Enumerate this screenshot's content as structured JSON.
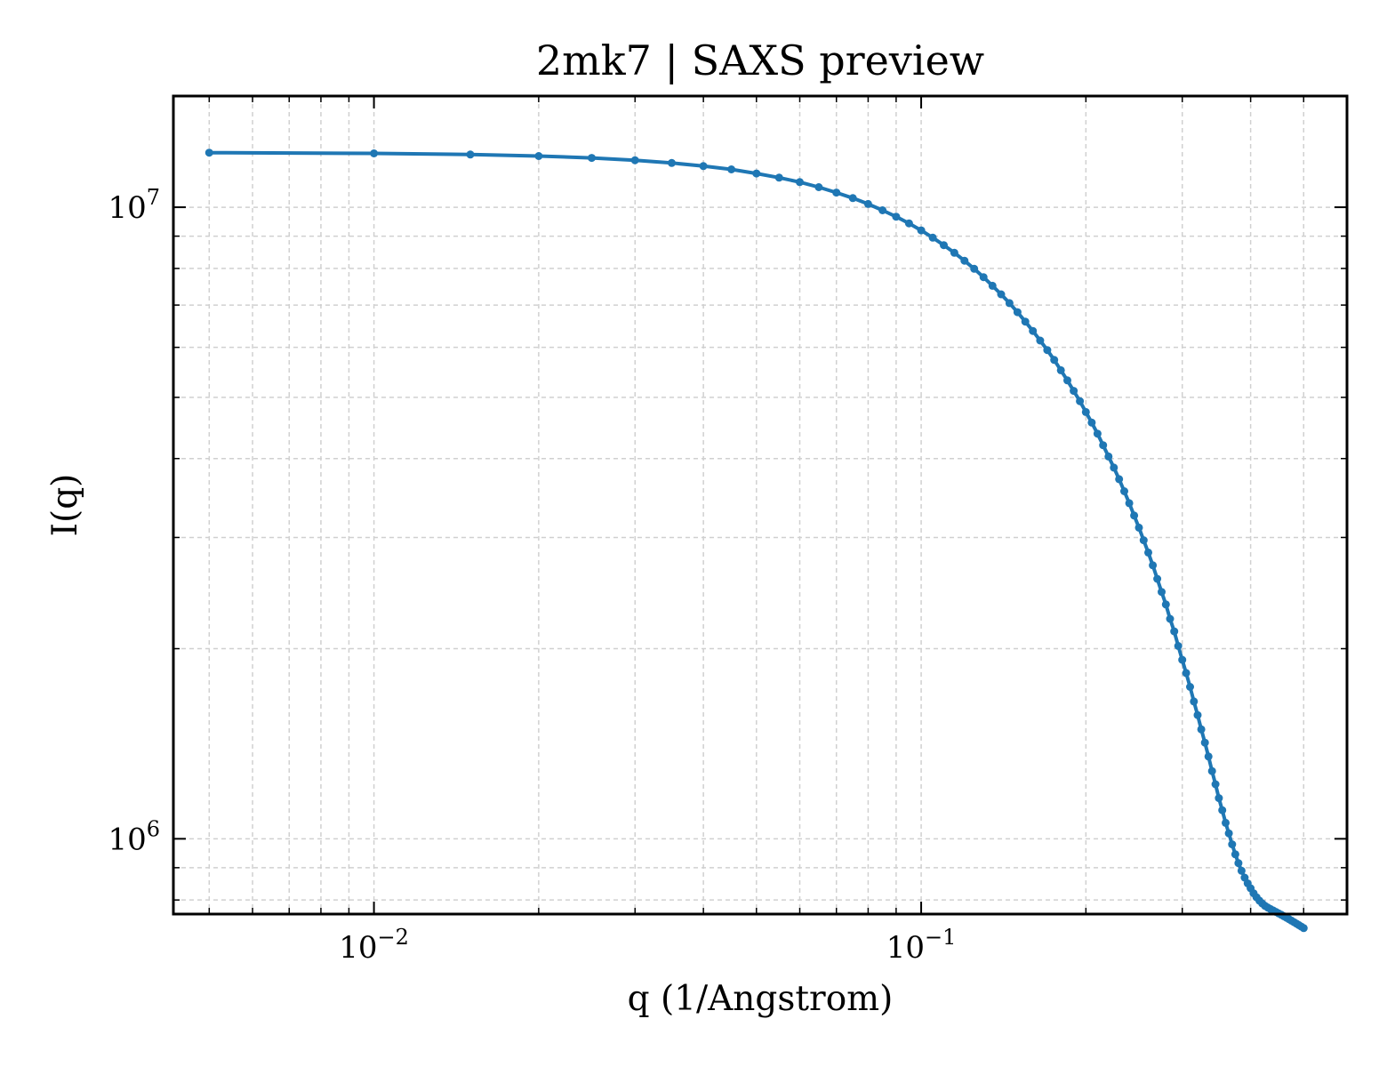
{
  "chart_data": {
    "type": "line",
    "title": "2mk7 | SAXS preview",
    "xlabel": "q (1/Angstrom)",
    "ylabel": "I(q)",
    "xscale": "log",
    "yscale": "log",
    "xlim": [
      0.0043,
      0.6
    ],
    "ylim": [
      760000,
      15000000
    ],
    "grid": true,
    "legend": "none",
    "x_ticks": [
      {
        "value": 0.01,
        "base": "10",
        "exp": "−2"
      },
      {
        "value": 0.1,
        "base": "10",
        "exp": "−1"
      }
    ],
    "y_ticks": [
      {
        "value": 1000000,
        "base": "10",
        "exp": "6"
      },
      {
        "value": 10000000,
        "base": "10",
        "exp": "7"
      }
    ],
    "series": [
      {
        "color": "#1f77b4",
        "x": [
          0.005,
          0.01,
          0.015,
          0.02,
          0.025,
          0.03,
          0.035,
          0.04,
          0.045,
          0.05,
          0.055,
          0.06,
          0.065,
          0.07,
          0.075,
          0.08,
          0.085,
          0.09,
          0.095,
          0.1,
          0.105,
          0.11,
          0.115,
          0.12,
          0.125,
          0.13,
          0.135,
          0.14,
          0.145,
          0.15,
          0.155,
          0.16,
          0.165,
          0.17,
          0.175,
          0.18,
          0.185,
          0.19,
          0.195,
          0.2,
          0.205,
          0.21,
          0.215,
          0.22,
          0.225,
          0.23,
          0.235,
          0.24,
          0.245,
          0.25,
          0.255,
          0.26,
          0.265,
          0.27,
          0.275,
          0.28,
          0.285,
          0.29,
          0.295,
          0.3,
          0.305,
          0.31,
          0.315,
          0.32,
          0.325,
          0.33,
          0.335,
          0.34,
          0.345,
          0.35,
          0.355,
          0.36,
          0.365,
          0.37,
          0.375,
          0.38,
          0.385,
          0.39,
          0.395,
          0.4,
          0.405,
          0.41,
          0.415,
          0.42,
          0.425,
          0.43,
          0.435,
          0.44,
          0.445,
          0.45,
          0.455,
          0.46,
          0.465,
          0.47,
          0.475,
          0.48,
          0.485,
          0.49,
          0.495,
          0.5
        ],
        "y": [
          12200000,
          12170000,
          12120000,
          12050000,
          11970000,
          11870000,
          11750000,
          11620000,
          11480000,
          11310000,
          11140000,
          10960000,
          10760000,
          10550000,
          10340000,
          10120000,
          9890000,
          9660000,
          9430000,
          9190000,
          8950000,
          8710000,
          8470000,
          8230000,
          7990000,
          7750000,
          7510000,
          7280000,
          7050000,
          6820000,
          6590000,
          6370000,
          6150000,
          5940000,
          5730000,
          5520000,
          5320000,
          5120000,
          4930000,
          4740000,
          4560000,
          4380000,
          4200000,
          4030000,
          3870000,
          3710000,
          3550000,
          3400000,
          3250000,
          3110000,
          2970000,
          2840000,
          2710000,
          2580000,
          2460000,
          2350000,
          2230000,
          2130000,
          2020000,
          1920000,
          1830000,
          1740000,
          1650000,
          1570000,
          1490000,
          1420000,
          1350000,
          1280000,
          1220000,
          1160000,
          1110000,
          1060000,
          1020000,
          980000,
          945000,
          915000,
          890000,
          868000,
          850000,
          835000,
          820000,
          808000,
          798000,
          790000,
          783000,
          778000,
          774000,
          770000,
          766000,
          762000,
          758000,
          754000,
          750000,
          746000,
          742000,
          738000,
          734000,
          730000,
          726000,
          722000
        ]
      }
    ]
  }
}
